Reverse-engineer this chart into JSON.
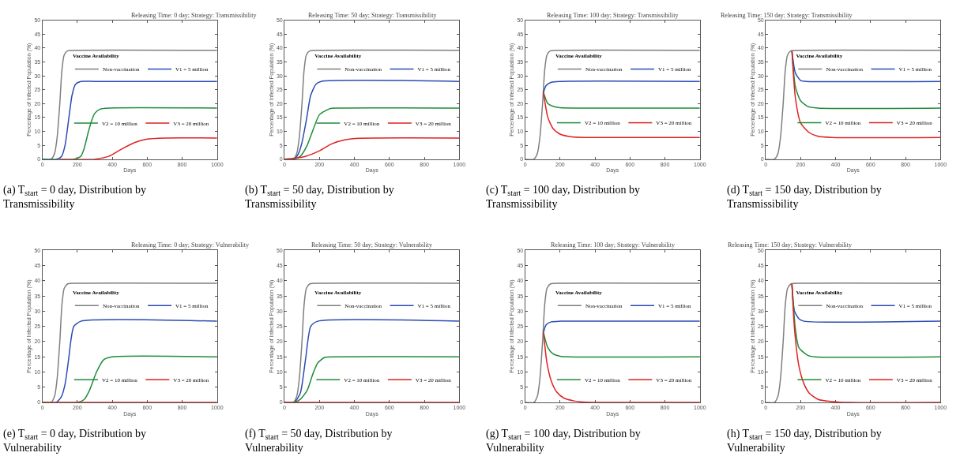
{
  "chart_data": [
    {
      "type": "line",
      "title": "Releasing Time: 0 day; Strategy: Transmissibility",
      "xlabel": "Days",
      "ylabel": "Percentage of Infected Population (%)",
      "legend_title": "Vaccine Availability",
      "legend": "right",
      "xlim": [
        0,
        1000
      ],
      "xticks": [
        0,
        200,
        400,
        600,
        800,
        1000
      ],
      "ylim": [
        0,
        50
      ],
      "yticks": [
        0,
        5,
        10,
        15,
        20,
        25,
        30,
        35,
        40,
        45,
        50
      ],
      "annotations": [
        "(a) T$_{start}$ = 0 day, Distribution by Transmissibility"
      ],
      "series": [
        {
          "name": "Non-vaccination",
          "color": "#7f7f7f",
          "x": [
            0,
            50,
            70,
            85,
            100,
            112,
            125,
            145,
            200,
            1000
          ],
          "values": [
            0,
            0,
            2,
            8,
            20,
            32,
            37.5,
            39,
            39.2,
            39.2
          ]
        },
        {
          "name": "V1 = 5 million",
          "color": "#2b4bb3",
          "x": [
            0,
            80,
            110,
            130,
            150,
            170,
            190,
            220,
            300,
            1000
          ],
          "values": [
            0,
            0,
            1,
            5,
            14,
            23,
            27,
            28,
            28,
            28
          ]
        },
        {
          "name": "V2 = 10 million",
          "color": "#1e8c3a",
          "x": [
            0,
            180,
            220,
            240,
            260,
            280,
            300,
            330,
            380,
            1000
          ],
          "values": [
            0,
            0,
            1,
            4,
            9,
            13.5,
            16.5,
            18,
            18.4,
            18.4
          ]
        },
        {
          "name": "V3 = 20 million",
          "color": "#e02020",
          "x": [
            100,
            300,
            380,
            450,
            530,
            600,
            700,
            1000
          ],
          "values": [
            0,
            0,
            1,
            3.5,
            6,
            7.2,
            7.6,
            7.6
          ]
        }
      ]
    },
    {
      "type": "line",
      "title": "Releasing Time: 50 day; Strategy: Transmissibility",
      "xlabel": "Days",
      "ylabel": "Percentage of Infected Population (%)",
      "legend_title": "Vaccine Availability",
      "legend": "right",
      "xlim": [
        0,
        1000
      ],
      "xticks": [
        0,
        200,
        400,
        600,
        800,
        1000
      ],
      "ylim": [
        0,
        50
      ],
      "yticks": [
        0,
        5,
        10,
        15,
        20,
        25,
        30,
        35,
        40,
        45,
        50
      ],
      "annotations": [
        "(b) T$_{start}$ = 50 day, Distribution by Transmissibility"
      ],
      "series": [
        {
          "name": "Non-vaccination",
          "color": "#7f7f7f",
          "x": [
            0,
            50,
            70,
            85,
            100,
            112,
            125,
            145,
            200,
            1000
          ],
          "values": [
            0,
            0,
            2,
            8,
            20,
            32,
            37.5,
            39,
            39.2,
            39.2
          ]
        },
        {
          "name": "V1 = 5 million",
          "color": "#2b4bb3",
          "x": [
            0,
            55,
            80,
            100,
            125,
            150,
            180,
            210,
            1000
          ],
          "values": [
            0,
            0,
            2,
            6,
            14,
            23,
            27,
            28,
            28
          ]
        },
        {
          "name": "V2 = 10 million",
          "color": "#1e8c3a",
          "x": [
            0,
            55,
            90,
            130,
            160,
            200,
            260,
            300,
            1000
          ],
          "values": [
            0,
            0,
            1,
            5,
            10,
            16,
            18.2,
            18.4,
            18.4
          ]
        },
        {
          "name": "V3 = 20 million",
          "color": "#e02020",
          "x": [
            0,
            55,
            120,
            200,
            270,
            350,
            430,
            1000
          ],
          "values": [
            0,
            0.3,
            1,
            3,
            5.5,
            7,
            7.5,
            7.6
          ]
        }
      ]
    },
    {
      "type": "line",
      "title": "Releasing Time: 100 day; Strategy: Transmissibility",
      "xlabel": "Days",
      "ylabel": "Percentage of Infected Population (%)",
      "legend_title": "Vaccine Availability",
      "legend": "right",
      "xlim": [
        0,
        1000
      ],
      "xticks": [
        0,
        200,
        400,
        600,
        800,
        1000
      ],
      "ylim": [
        0,
        50
      ],
      "yticks": [
        0,
        5,
        10,
        15,
        20,
        25,
        30,
        35,
        40,
        45,
        50
      ],
      "annotations": [
        "(c) T$_{start}$ = 100 day, Distribution by Transmissibility"
      ],
      "series": [
        {
          "name": "Non-vaccination",
          "color": "#7f7f7f",
          "x": [
            0,
            50,
            70,
            85,
            100,
            112,
            125,
            145,
            200,
            1000
          ],
          "values": [
            0,
            0,
            2,
            8,
            20,
            32,
            37.5,
            39,
            39.2,
            39.2
          ]
        },
        {
          "name": "V1 = 5 million",
          "color": "#2b4bb3",
          "x": [
            105,
            120,
            150,
            200,
            1000
          ],
          "values": [
            24,
            26.5,
            27.7,
            28,
            28
          ]
        },
        {
          "name": "V2 = 10 million",
          "color": "#1e8c3a",
          "x": [
            105,
            130,
            160,
            200,
            300,
            1000
          ],
          "values": [
            24,
            20,
            19,
            18.5,
            18.4,
            18.4
          ]
        },
        {
          "name": "V3 = 20 million",
          "color": "#e02020",
          "x": [
            105,
            130,
            160,
            200,
            270,
            350,
            1000
          ],
          "values": [
            24,
            15,
            11,
            9,
            8,
            7.8,
            7.8
          ]
        }
      ]
    },
    {
      "type": "line",
      "title": "Releasing Time: 150 day; Strategy: Transmissibility",
      "xlabel": "Days",
      "ylabel": "Percentage of Infected Population (%)",
      "legend_title": "Vaccine Availability",
      "legend": "right",
      "xlim": [
        0,
        1000
      ],
      "xticks": [
        0,
        200,
        400,
        600,
        800,
        1000
      ],
      "ylim": [
        0,
        50
      ],
      "yticks": [
        0,
        5,
        10,
        15,
        20,
        25,
        30,
        35,
        40,
        45,
        50
      ],
      "annotations": [
        "(d) T$_{start}$ = 150 day, Distribution by Transmissibility"
      ],
      "series": [
        {
          "name": "Non-vaccination",
          "color": "#7f7f7f",
          "x": [
            0,
            50,
            70,
            85,
            100,
            112,
            125,
            145,
            200,
            1000
          ],
          "values": [
            0,
            0,
            2,
            8,
            20,
            32,
            37.5,
            39,
            39.2,
            39.2
          ]
        },
        {
          "name": "V1 = 5 million",
          "color": "#2b4bb3",
          "x": [
            150,
            170,
            200,
            230,
            1000
          ],
          "values": [
            39,
            31,
            28.3,
            28,
            28
          ]
        },
        {
          "name": "V2 = 10 million",
          "color": "#1e8c3a",
          "x": [
            150,
            170,
            200,
            240,
            300,
            1000
          ],
          "values": [
            39,
            26,
            21,
            19,
            18.4,
            18.4
          ]
        },
        {
          "name": "V3 = 20 million",
          "color": "#e02020",
          "x": [
            150,
            170,
            200,
            250,
            300,
            380,
            1000
          ],
          "values": [
            39,
            22,
            13,
            9.5,
            8.2,
            7.8,
            7.8
          ]
        }
      ]
    },
    {
      "type": "line",
      "title": "Releasing Time: 0 day; Strategy: Vulnerability",
      "xlabel": "Days",
      "ylabel": "Percentage of Infected Population (%)",
      "legend_title": "Vaccine Availability",
      "legend": "right",
      "xlim": [
        0,
        1000
      ],
      "xticks": [
        0,
        200,
        400,
        600,
        800,
        1000
      ],
      "ylim": [
        0,
        50
      ],
      "yticks": [
        0,
        5,
        10,
        15,
        20,
        25,
        30,
        35,
        40,
        45,
        50
      ],
      "annotations": [
        "(e) T$_{start}$ = 0 day, Distribution by Vulnerability"
      ],
      "series": [
        {
          "name": "Non-vaccination",
          "color": "#7f7f7f",
          "x": [
            0,
            50,
            70,
            85,
            100,
            112,
            125,
            145,
            200,
            1000
          ],
          "values": [
            0,
            0,
            2,
            8,
            20,
            32,
            37.5,
            39,
            39.2,
            39.2
          ]
        },
        {
          "name": "V1 = 5 million",
          "color": "#2b4bb3",
          "x": [
            0,
            80,
            110,
            130,
            150,
            165,
            180,
            220,
            1000
          ],
          "values": [
            0,
            0,
            2,
            6,
            14,
            21,
            25,
            26.7,
            26.7
          ]
        },
        {
          "name": "V2 = 10 million",
          "color": "#1e8c3a",
          "x": [
            0,
            200,
            240,
            270,
            310,
            350,
            400,
            1000
          ],
          "values": [
            0,
            0,
            1,
            4,
            10,
            14,
            15,
            15
          ]
        },
        {
          "name": "V3 = 20 million",
          "color": "#e02020",
          "x": [
            0,
            1000
          ],
          "values": [
            0,
            0
          ]
        }
      ]
    },
    {
      "type": "line",
      "title": "Releasing Time: 50 day; Strategy: Vulnerability",
      "xlabel": "Days",
      "ylabel": "Percentage of Infected Population (%)",
      "legend_title": "Vaccine Availability",
      "legend": "right",
      "xlim": [
        0,
        1000
      ],
      "xticks": [
        0,
        200,
        400,
        600,
        800,
        1000
      ],
      "ylim": [
        0,
        50
      ],
      "yticks": [
        0,
        5,
        10,
        15,
        20,
        25,
        30,
        35,
        40,
        45,
        50
      ],
      "annotations": [
        "(f) T$_{start}$ = 50 day, Distribution by Vulnerability"
      ],
      "series": [
        {
          "name": "Non-vaccination",
          "color": "#7f7f7f",
          "x": [
            0,
            50,
            70,
            85,
            100,
            112,
            125,
            145,
            200,
            1000
          ],
          "values": [
            0,
            0,
            2,
            8,
            20,
            32,
            37.5,
            39,
            39.2,
            39.2
          ]
        },
        {
          "name": "V1 = 5 million",
          "color": "#2b4bb3",
          "x": [
            0,
            55,
            90,
            120,
            150,
            190,
            1000
          ],
          "values": [
            0,
            0,
            3,
            14,
            25,
            26.7,
            26.7
          ]
        },
        {
          "name": "V2 = 10 million",
          "color": "#1e8c3a",
          "x": [
            0,
            55,
            90,
            130,
            160,
            190,
            230,
            300,
            1000
          ],
          "values": [
            0,
            0,
            1,
            4,
            9,
            13,
            14.8,
            15,
            15
          ]
        },
        {
          "name": "V3 = 20 million",
          "color": "#e02020",
          "x": [
            0,
            1000
          ],
          "values": [
            0,
            0
          ]
        }
      ]
    },
    {
      "type": "line",
      "title": "Releasing Time: 100 day; Strategy: Vulnerability",
      "xlabel": "Days",
      "ylabel": "Percentage of Infected Population (%)",
      "legend_title": "Vaccine Availability",
      "legend": "right",
      "xlim": [
        0,
        1000
      ],
      "xticks": [
        0,
        200,
        400,
        600,
        800,
        1000
      ],
      "ylim": [
        0,
        50
      ],
      "yticks": [
        0,
        5,
        10,
        15,
        20,
        25,
        30,
        35,
        40,
        45,
        50
      ],
      "annotations": [
        "(g) T$_{start}$ = 100 day, Distribution by Vulnerability"
      ],
      "series": [
        {
          "name": "Non-vaccination",
          "color": "#7f7f7f",
          "x": [
            0,
            50,
            70,
            85,
            100,
            112,
            125,
            145,
            200,
            1000
          ],
          "values": [
            0,
            0,
            2,
            8,
            20,
            32,
            37.5,
            39,
            39.2,
            39.2
          ]
        },
        {
          "name": "V1 = 5 million",
          "color": "#2b4bb3",
          "x": [
            105,
            120,
            150,
            200,
            1000
          ],
          "values": [
            23,
            25.5,
            26.5,
            26.7,
            26.7
          ]
        },
        {
          "name": "V2 = 10 million",
          "color": "#1e8c3a",
          "x": [
            105,
            130,
            160,
            200,
            250,
            1000
          ],
          "values": [
            23,
            18,
            16,
            15.2,
            15,
            15
          ]
        },
        {
          "name": "V3 = 20 million",
          "color": "#e02020",
          "x": [
            105,
            125,
            150,
            180,
            220,
            280,
            350,
            450,
            1000
          ],
          "values": [
            23,
            13,
            7,
            3.5,
            1.5,
            0.5,
            0.1,
            0,
            0
          ]
        }
      ]
    },
    {
      "type": "line",
      "title": "Releasing Time: 150 day; Strategy: Vulnerability",
      "xlabel": "Days",
      "ylabel": "Percentage of Infected Population (%)",
      "legend_title": "Vaccine Availability",
      "legend": "right",
      "xlim": [
        0,
        1000
      ],
      "xticks": [
        0,
        200,
        400,
        600,
        800,
        1000
      ],
      "ylim": [
        0,
        50
      ],
      "yticks": [
        0,
        5,
        10,
        15,
        20,
        25,
        30,
        35,
        40,
        45,
        50
      ],
      "annotations": [
        "(h) T$_{start}$ = 150 day, Distribution by Vulnerability"
      ],
      "series": [
        {
          "name": "Non-vaccination",
          "color": "#7f7f7f",
          "x": [
            0,
            50,
            70,
            85,
            100,
            112,
            125,
            145,
            200,
            1000
          ],
          "values": [
            0,
            0,
            2,
            8,
            20,
            32,
            37.5,
            39,
            39.2,
            39.2
          ]
        },
        {
          "name": "V1 = 5 million",
          "color": "#2b4bb3",
          "x": [
            150,
            165,
            190,
            220,
            1000
          ],
          "values": [
            39,
            30,
            27.5,
            26.7,
            26.7
          ]
        },
        {
          "name": "V2 = 10 million",
          "color": "#1e8c3a",
          "x": [
            150,
            170,
            190,
            240,
            280,
            1000
          ],
          "values": [
            39,
            24,
            18,
            15.5,
            15,
            15
          ]
        },
        {
          "name": "V3 = 20 million",
          "color": "#e02020",
          "x": [
            150,
            165,
            190,
            220,
            250,
            300,
            380,
            480,
            1000
          ],
          "values": [
            39,
            24,
            12,
            6,
            3,
            1,
            0.3,
            0,
            0
          ]
        }
      ]
    }
  ]
}
